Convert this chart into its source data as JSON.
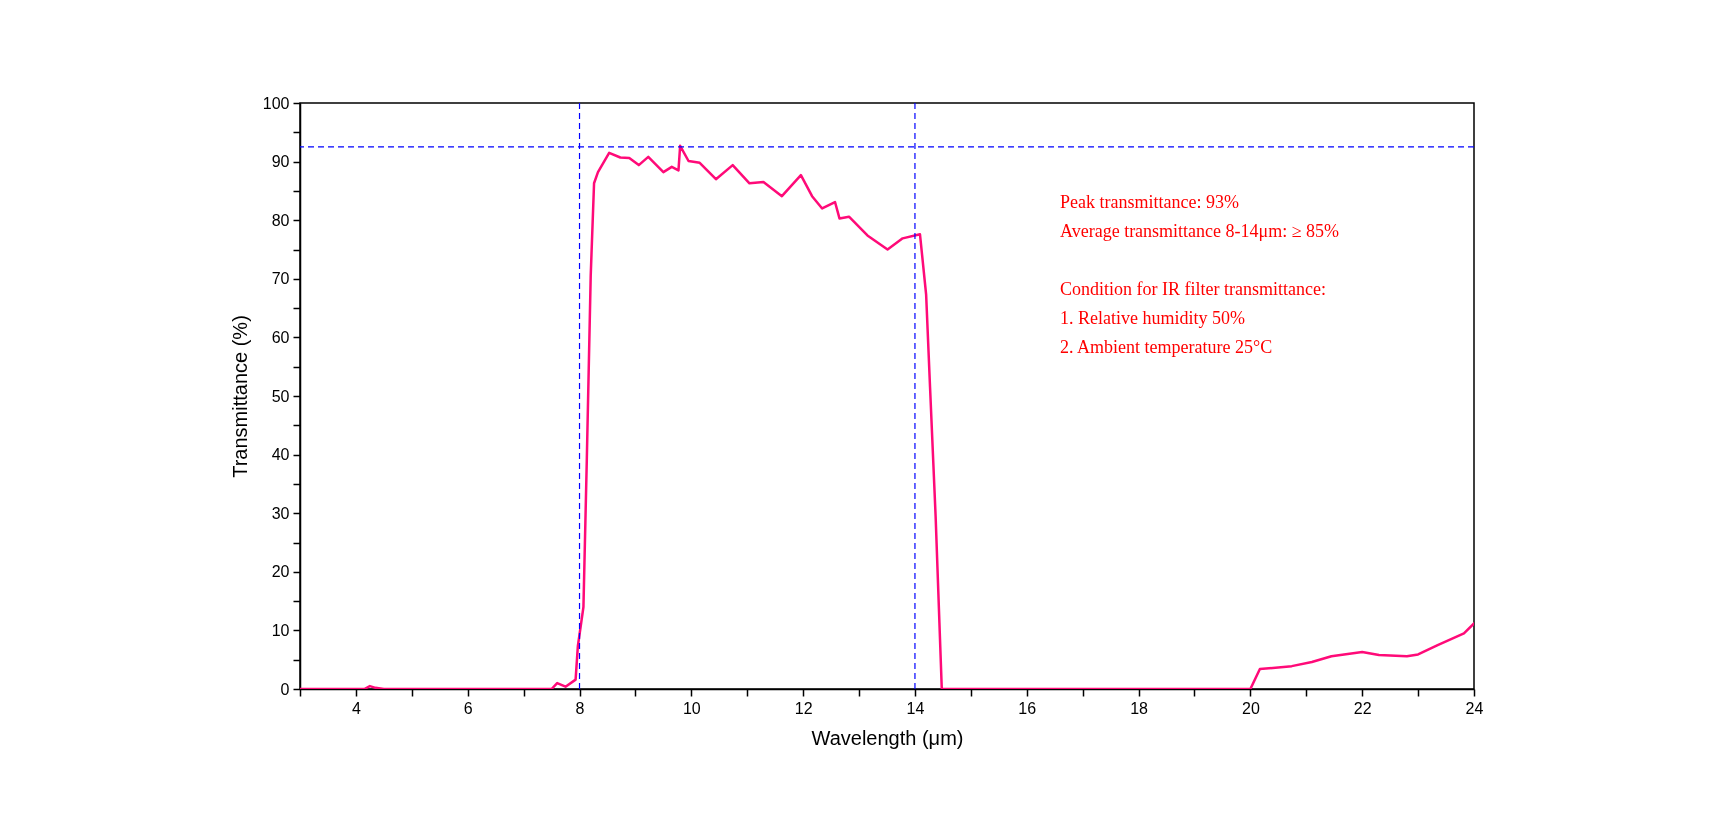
{
  "chart_data": {
    "type": "line",
    "xlabel": "Wavelength (μm)",
    "ylabel": "Transmittance (%)",
    "xlim": [
      3,
      24
    ],
    "xticks": [
      {
        "value": 3,
        "label": null
      },
      4,
      {
        "value": 5,
        "label": null
      },
      6,
      {
        "value": 7,
        "label": null
      },
      8,
      {
        "value": 9,
        "label": null
      },
      10,
      {
        "value": 11,
        "label": null
      },
      12,
      {
        "value": 13,
        "label": null
      },
      14,
      {
        "value": 15,
        "label": null
      },
      16,
      {
        "value": 17,
        "label": null
      },
      18,
      {
        "value": 19,
        "label": null
      },
      20,
      {
        "value": 21,
        "label": null
      },
      22,
      {
        "value": 23,
        "label": null
      },
      24
    ],
    "ylim": [
      0,
      100
    ],
    "yticks": [
      0,
      {
        "value": 5,
        "label": null
      },
      10,
      {
        "value": 15,
        "label": null
      },
      20,
      {
        "value": 25,
        "label": null
      },
      30,
      {
        "value": 35,
        "label": null
      },
      40,
      {
        "value": 45,
        "label": null
      },
      50,
      {
        "value": 55,
        "label": null
      },
      60,
      {
        "value": 65,
        "label": null
      },
      70,
      {
        "value": 75,
        "label": null
      },
      80,
      {
        "value": 85,
        "label": null
      },
      90,
      {
        "value": 95,
        "label": null
      },
      100
    ],
    "grid": false,
    "marker": "none",
    "line_style": "solid",
    "series": [
      {
        "color": "#ff0a78",
        "x": [
          3,
          4.15,
          4.25,
          4.35,
          4.5,
          7.5,
          7.6,
          7.75,
          7.93,
          7.97,
          8.07,
          8.13,
          8.2,
          8.26,
          8.33,
          8.53,
          8.73,
          8.89,
          9.06,
          9.23,
          9.5,
          9.65,
          9.77,
          9.8,
          9.95,
          10.15,
          10.44,
          10.74,
          11.04,
          11.29,
          11.62,
          11.96,
          12.16,
          12.34,
          12.57,
          12.65,
          12.82,
          13.15,
          13.51,
          13.78,
          14.09,
          14.2,
          14.27,
          14.37,
          14.48,
          20.0,
          20.17,
          20.74,
          21.1,
          21.45,
          22.0,
          22.3,
          22.8,
          23.0,
          23.35,
          23.82,
          24
        ],
        "values": [
          0,
          0,
          0.5,
          0.2,
          0,
          0,
          1,
          0.4,
          1.6,
          7.3,
          14,
          39,
          70.5,
          86.3,
          88.2,
          91.5,
          90.7,
          90.6,
          89.4,
          90.8,
          88.2,
          89.1,
          88.5,
          92.7,
          90.1,
          89.8,
          87.0,
          89.4,
          86.3,
          86.5,
          84.1,
          87.7,
          84.1,
          82.0,
          83.1,
          80.3,
          80.6,
          77.4,
          75.0,
          76.9,
          77.6,
          67.3,
          51.5,
          29.4,
          0,
          0,
          3.4,
          3.9,
          4.6,
          5.6,
          6.3,
          5.8,
          5.6,
          5.9,
          7.5,
          9.5,
          11.2
        ]
      }
    ],
    "ref_lines": [
      {
        "axis": "x",
        "value": 8,
        "color": "#0000ff",
        "line_style": "dashed"
      },
      {
        "axis": "x",
        "value": 14,
        "color": "#0000ff",
        "line_style": "dashed"
      },
      {
        "axis": "y",
        "value": 92.5,
        "color": "#0000ff",
        "line_style": "dashed"
      }
    ],
    "annotations": [
      "Peak transmittance: 93%",
      "Average transmittance 8-14μm: ≥  85%",
      "Condition for IR filter transmittance:",
      "1. Relative humidity 50%",
      "2. Ambient temperature 25°C"
    ]
  }
}
